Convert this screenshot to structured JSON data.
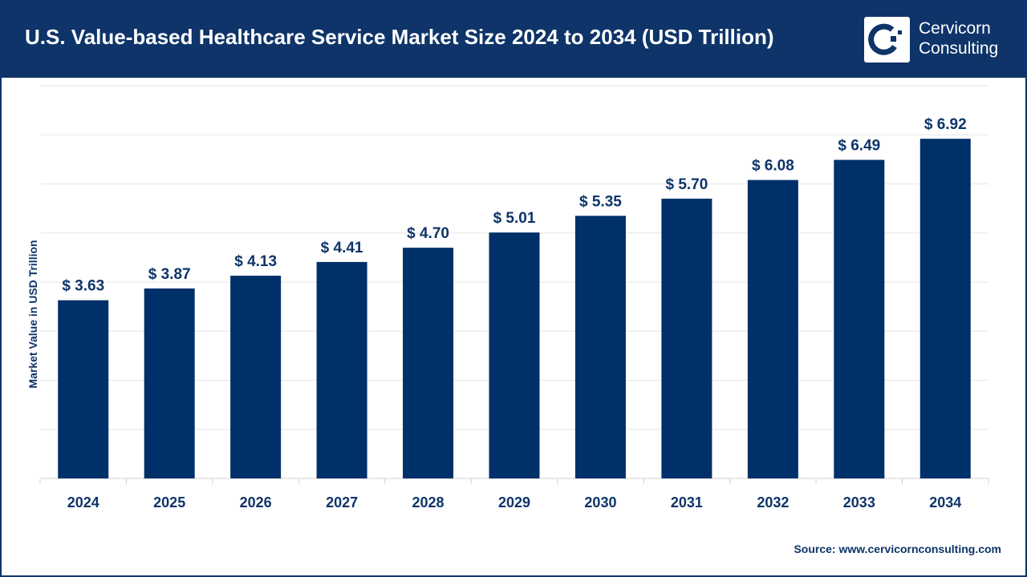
{
  "header": {
    "title": "U.S. Value-based Healthcare Service Market Size 2024 to 2034 (USD Trillion)"
  },
  "logo": {
    "line1": "Cervicorn",
    "line2": "Consulting"
  },
  "source": "Source: www.cervicornconsulting.com",
  "colors": {
    "bar": "#003069",
    "header": "#0e3469",
    "grid": "#e6e6e6"
  },
  "chart_data": {
    "type": "bar",
    "title": "U.S. Value-based Healthcare Service Market Size 2024 to 2034 (USD Trillion)",
    "xlabel": "",
    "ylabel": "Market Value in USD Trillion",
    "categories": [
      "2024",
      "2025",
      "2026",
      "2027",
      "2028",
      "2029",
      "2030",
      "2031",
      "2032",
      "2033",
      "2034"
    ],
    "values": [
      3.63,
      3.87,
      4.13,
      4.41,
      4.7,
      5.01,
      5.35,
      5.7,
      6.08,
      6.49,
      6.92
    ],
    "data_labels": [
      "$ 3.63",
      "$ 3.87",
      "$ 4.13",
      "$ 4.41",
      "$ 4.70",
      "$ 5.01",
      "$ 5.35",
      "$ 5.70",
      "$ 6.08",
      "$ 6.49",
      "$ 6.92"
    ],
    "ylim": [
      0,
      8
    ],
    "grid": true,
    "y_tick_labels_shown": false
  }
}
